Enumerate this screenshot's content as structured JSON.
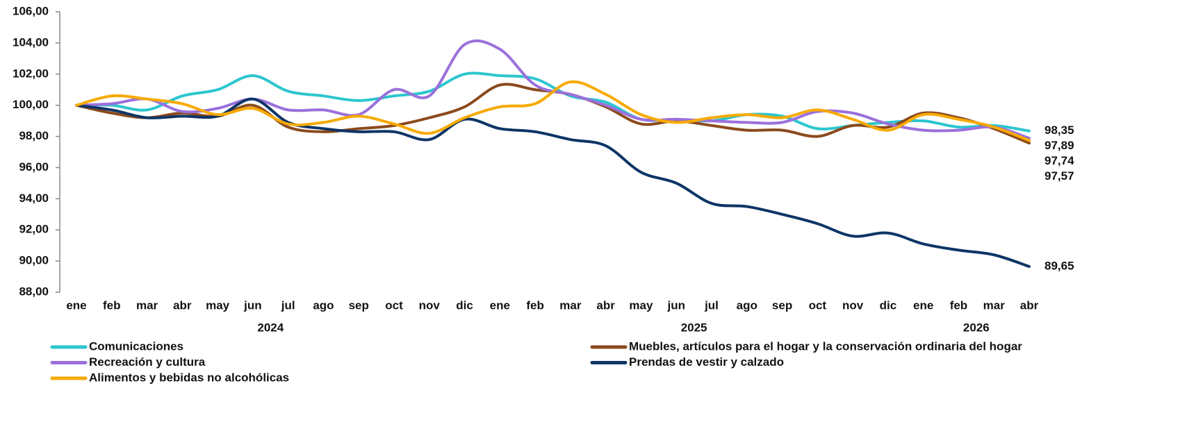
{
  "chart_data": {
    "type": "line",
    "categories": [
      "ene",
      "feb",
      "mar",
      "abr",
      "may",
      "jun",
      "jul",
      "ago",
      "sep",
      "oct",
      "nov",
      "dic",
      "ene",
      "feb",
      "mar",
      "abr",
      "may",
      "jun",
      "jul",
      "ago",
      "sep",
      "oct",
      "nov",
      "dic",
      "ene",
      "feb",
      "mar",
      "abr"
    ],
    "x_groups": [
      {
        "label": "2024",
        "span": 12
      },
      {
        "label": "2025",
        "span": 12
      },
      {
        "label": "2026",
        "span": 4
      }
    ],
    "ylim": [
      88,
      106
    ],
    "yticks": [
      {
        "value": 88,
        "label": "88,00"
      },
      {
        "value": 90,
        "label": "90,00"
      },
      {
        "value": 92,
        "label": "92,00"
      },
      {
        "value": 94,
        "label": "94,00"
      },
      {
        "value": 96,
        "label": "96,00"
      },
      {
        "value": 98,
        "label": "98,00"
      },
      {
        "value": 100,
        "label": "100,00"
      },
      {
        "value": 102,
        "label": "102,00"
      },
      {
        "value": 104,
        "label": "104,00"
      },
      {
        "value": 106,
        "label": "106,00"
      }
    ],
    "series": [
      {
        "name": "Comunicaciones",
        "color": "#2cc6cf",
        "values": [
          100,
          100,
          99.7,
          100.6,
          101,
          101.9,
          100.9,
          100.6,
          100.3,
          100.6,
          100.9,
          102,
          101.9,
          101.7,
          100.6,
          100.2,
          99.1,
          99.1,
          99,
          99.4,
          99.3,
          98.5,
          98.7,
          98.9,
          99,
          98.6,
          98.7,
          98.35
        ],
        "value_labels": [
          null,
          null,
          null,
          null,
          null,
          null,
          null,
          null,
          null,
          null,
          null,
          null,
          null,
          null,
          null,
          null,
          null,
          null,
          null,
          null,
          null,
          null,
          null,
          null,
          null,
          null,
          null,
          "98,35"
        ]
      },
      {
        "name": "Muebles, artículos para el hogar y la conservación ordinaria del hogar",
        "color": "#8b4a1c",
        "values": [
          100,
          99.5,
          99.2,
          99.5,
          99.3,
          100,
          98.6,
          98.3,
          98.5,
          98.7,
          99.2,
          99.9,
          101.3,
          101,
          100.7,
          99.9,
          98.8,
          99,
          98.7,
          98.4,
          98.4,
          98,
          98.7,
          98.6,
          99.5,
          99.2,
          98.5,
          97.57
        ],
        "value_labels": [
          null,
          null,
          null,
          null,
          null,
          null,
          null,
          null,
          null,
          null,
          null,
          null,
          null,
          null,
          null,
          null,
          null,
          null,
          null,
          null,
          null,
          null,
          null,
          null,
          null,
          null,
          null,
          "97,57"
        ]
      },
      {
        "name": "Recreación y cultura",
        "color": "#9b70dc",
        "values": [
          100,
          100.1,
          100.4,
          99.6,
          99.8,
          100.4,
          99.7,
          99.7,
          99.4,
          101,
          100.6,
          103.9,
          103.6,
          101.3,
          100.7,
          100,
          99.1,
          99.1,
          99,
          98.9,
          98.9,
          99.6,
          99.5,
          98.8,
          98.4,
          98.4,
          98.6,
          97.89
        ],
        "value_labels": [
          null,
          null,
          null,
          null,
          null,
          null,
          null,
          null,
          null,
          null,
          null,
          null,
          null,
          null,
          null,
          null,
          null,
          null,
          null,
          null,
          null,
          null,
          null,
          null,
          null,
          null,
          null,
          "97,89"
        ]
      },
      {
        "name": "Prendas de vestir y calzado",
        "color": "#0d3566",
        "values": [
          100,
          99.7,
          99.2,
          99.3,
          99.3,
          100.4,
          98.9,
          98.5,
          98.3,
          98.3,
          97.8,
          99.1,
          98.5,
          98.3,
          97.8,
          97.4,
          95.7,
          95,
          93.7,
          93.5,
          93,
          92.4,
          91.6,
          91.8,
          91.1,
          90.7,
          90.4,
          89.65
        ],
        "value_labels": [
          null,
          null,
          null,
          null,
          null,
          null,
          null,
          null,
          null,
          null,
          null,
          null,
          null,
          null,
          null,
          null,
          null,
          null,
          null,
          null,
          null,
          null,
          null,
          null,
          null,
          null,
          null,
          "89,65"
        ]
      },
      {
        "name": "Alimentos y bebidas no alcohólicas",
        "color": "#f7aa00",
        "values": [
          100,
          100.6,
          100.4,
          100.1,
          99.4,
          99.8,
          98.8,
          98.9,
          99.3,
          98.8,
          98.2,
          99.2,
          99.9,
          100.1,
          101.5,
          100.7,
          99.4,
          98.9,
          99.2,
          99.4,
          99.2,
          99.7,
          99.1,
          98.4,
          99.4,
          99.1,
          98.6,
          97.74
        ],
        "value_labels": [
          null,
          null,
          null,
          null,
          null,
          null,
          null,
          null,
          null,
          null,
          null,
          null,
          null,
          null,
          null,
          null,
          null,
          null,
          null,
          null,
          null,
          null,
          null,
          null,
          null,
          null,
          null,
          "97,74"
        ]
      }
    ]
  }
}
